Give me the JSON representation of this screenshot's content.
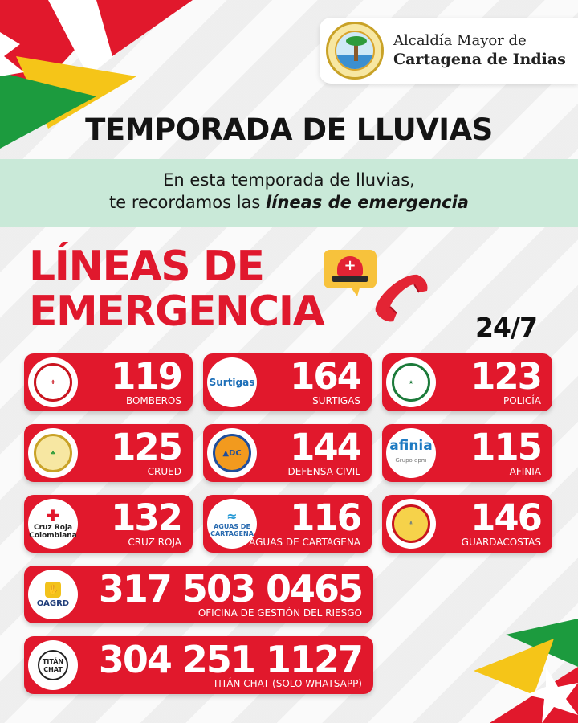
{
  "header": {
    "logo_line1": "Alcaldía Mayor de",
    "logo_line2": "Cartagena de Indias",
    "seal_icon": "city-seal-icon"
  },
  "title": "TEMPORADA DE LLUVIAS",
  "band": {
    "line1": "En esta temporada de lluvias,",
    "line2_plain": "te recordamos las ",
    "line2_emph": "líneas de emergencia"
  },
  "heading": {
    "line1": "LÍNEAS DE",
    "line2": "EMERGENCIA",
    "availability": "24/7"
  },
  "colors": {
    "card_red": "#e1182c",
    "title_red": "#e0182d",
    "band_green": "#c9e9d8"
  },
  "lines": [
    {
      "number": "119",
      "label": "BOMBEROS",
      "icon": "firefighters-badge-icon"
    },
    {
      "number": "164",
      "label": "SURTIGAS",
      "icon": "surtigas-logo-icon",
      "logo_text": "Surtigas"
    },
    {
      "number": "123",
      "label": "POLICÍA",
      "icon": "police-badge-icon"
    },
    {
      "number": "125",
      "label": "CRUED",
      "icon": "crued-seal-icon"
    },
    {
      "number": "144",
      "label": "DEFENSA CIVIL",
      "icon": "civil-defense-icon",
      "logo_text": "DC"
    },
    {
      "number": "115",
      "label": "AFINIA",
      "icon": "afinia-logo-icon",
      "logo_text": "afinia",
      "logo_sub": "Grupo epm"
    },
    {
      "number": "132",
      "label": "CRUZ ROJA",
      "icon": "red-cross-icon",
      "logo_text": "Cruz Roja Colombiana"
    },
    {
      "number": "116",
      "label": "AGUAS DE CARTAGENA",
      "icon": "aguas-logo-icon",
      "logo_text": "AGUAS DE CARTAGENA"
    },
    {
      "number": "146",
      "label": "GUARDACOSTAS",
      "icon": "coast-guard-badge-icon"
    },
    {
      "number": "317 503 0465",
      "label": "OFICINA DE GESTIÓN DEL RIESGO",
      "icon": "oagrd-logo-icon",
      "logo_text": "OAGRD"
    },
    {
      "number": "304 251 1127",
      "label": "TITÁN CHAT (SOLO WHATSAPP)",
      "icon": "titan-chat-icon",
      "logo_text": "TITÁN CHAT"
    }
  ]
}
